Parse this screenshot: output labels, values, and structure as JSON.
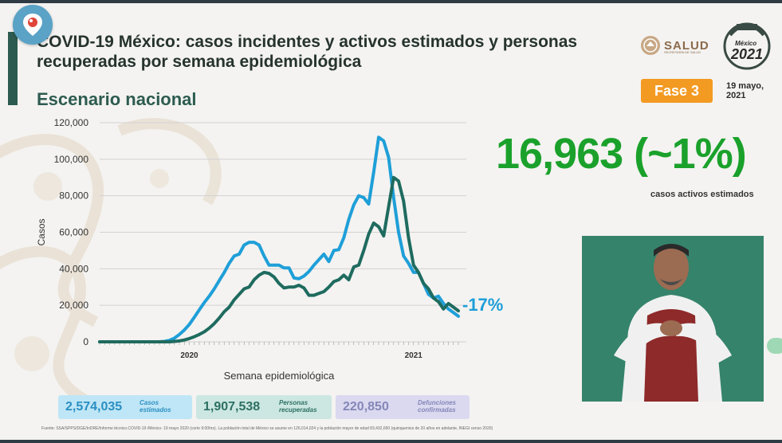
{
  "header": {
    "title": "COVID-19 México: casos incidentes y activos estimados y personas recuperadas por semana epidemiológica",
    "subtitle": "Escenario nacional",
    "logo_text": "SALUD",
    "logo_subtext": "SECRETARÍA DE SALUD",
    "logo2_text": "2021",
    "logo2_top": "México",
    "phase": "Fase 3",
    "date": "19 mayo,\n2021"
  },
  "highlight": {
    "value": "16,963 (~1%)",
    "label": "casos activos estimados"
  },
  "change": "-17%",
  "stats": [
    {
      "value": "2,574,035",
      "label": "Casos\nestimados"
    },
    {
      "value": "1,907,538",
      "label": "Personas\nrecuperadas"
    },
    {
      "value": "220,850",
      "label": "Defunciones\nconfirmadas"
    }
  ],
  "source": "Fuente: SSA/SPPS/DGE/InDRE/Informe técnico.COVID-19 /México- 19 mayo 2020 (corte 9:00hrs). La población total de México se asume en 126,014,024 y la población mayor de edad 83,432,650 (quinquenios de 20 años en adelante, INEGI censo 2020)",
  "colors": {
    "incident": "#1f9fd8",
    "active": "#1f6b5f",
    "highlight": "#1aa12b",
    "phase": "#f39a22"
  },
  "chart_data": {
    "type": "line",
    "ylabel": "Casos",
    "xlabel": "Semana epidemiológica",
    "ylim": [
      0,
      120000
    ],
    "yticks": [
      "0",
      "20,000",
      "40,000",
      "60,000",
      "80,000",
      "100,000",
      "120,000"
    ],
    "year_labels": [
      {
        "label": "2020",
        "week": 18
      },
      {
        "label": "2021",
        "week": 63
      }
    ],
    "grid": true,
    "series": [
      {
        "color": "#1f9fd8",
        "values": [
          0,
          0,
          0,
          0,
          0,
          0,
          0,
          0,
          0,
          0,
          0,
          0,
          0,
          200,
          800,
          2000,
          4000,
          6500,
          9500,
          13500,
          17500,
          21500,
          25000,
          29000,
          33500,
          38000,
          43000,
          47000,
          48000,
          53000,
          54500,
          54500,
          53000,
          47000,
          42000,
          42000,
          42000,
          40500,
          40500,
          35000,
          34500,
          36000,
          38500,
          42000,
          45000,
          48000,
          44000,
          50000,
          50500,
          57000,
          67000,
          75000,
          80000,
          79000,
          75500,
          93000,
          112000,
          110000,
          101000,
          79000,
          60000,
          47000,
          43000,
          38000,
          38000,
          32000,
          26000,
          24000,
          25000,
          21000,
          18000,
          16000,
          14000
        ]
      },
      {
        "color": "#1f6b5f",
        "values": [
          0,
          0,
          0,
          0,
          0,
          0,
          0,
          0,
          0,
          0,
          0,
          0,
          0,
          0,
          0,
          200,
          500,
          1000,
          1800,
          2800,
          4000,
          5500,
          7500,
          10000,
          13000,
          16500,
          19000,
          23000,
          26000,
          29000,
          30000,
          34000,
          36500,
          38000,
          37500,
          35500,
          32000,
          29500,
          30000,
          30000,
          31000,
          29500,
          25500,
          25500,
          26500,
          27500,
          30000,
          33000,
          34000,
          36500,
          34000,
          41000,
          42000,
          50000,
          59000,
          65000,
          63000,
          58000,
          74000,
          90000,
          88000,
          77000,
          57000,
          42000,
          38000,
          32000,
          29000,
          24000,
          22000,
          18000,
          21000,
          19000,
          16963
        ]
      }
    ]
  }
}
